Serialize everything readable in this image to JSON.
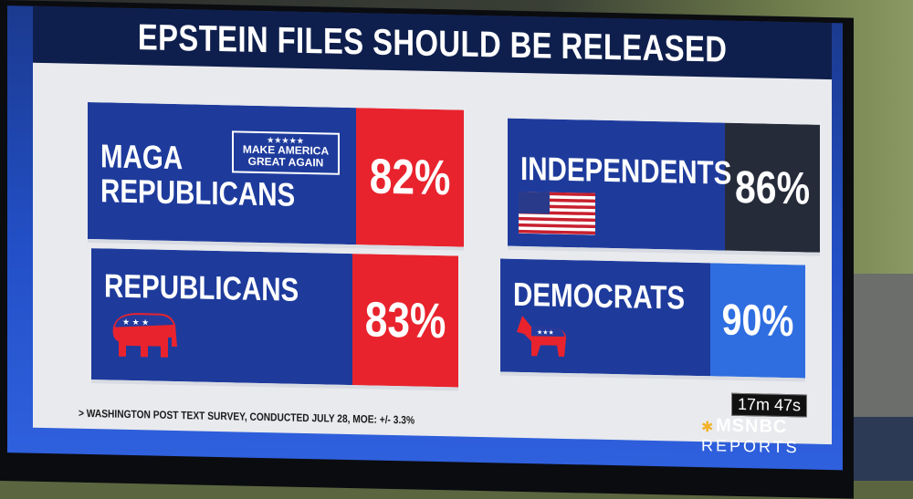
{
  "title": "EPSTEIN FILES SHOULD BE RELEASED",
  "cards": [
    {
      "name_line1": "MAGA",
      "name_line2": "REPUBLICANS",
      "badge_line1": "MAKE AMERICA",
      "badge_line2": "GREAT AGAIN",
      "badge_stars": "★★★★★",
      "value": "82%",
      "value_color": "#e8232d"
    },
    {
      "name_line1": "INDEPENDENTS",
      "value": "86%",
      "value_color": "#262b3a"
    },
    {
      "name_line1": "REPUBLICANS",
      "value": "83%",
      "value_color": "#e8232d"
    },
    {
      "name_line1": "DEMOCRATS",
      "value": "90%",
      "value_color": "#2f6ee0"
    }
  ],
  "footnote": "> WASHINGTON POST TEXT SURVEY, CONDUCTED JULY 28, MOE: +/- 3.3%",
  "network": {
    "timer": "17m 47s",
    "name": "MSNBC",
    "show": "REPORTS"
  },
  "icons": [
    "american-flag-icon",
    "elephant-icon",
    "donkey-icon",
    "peacock-icon"
  ],
  "colors": {
    "navy": "#0f1f4d",
    "card_blue": "#1e3b9c",
    "red": "#e8232d",
    "accent": "#e7a72a"
  }
}
